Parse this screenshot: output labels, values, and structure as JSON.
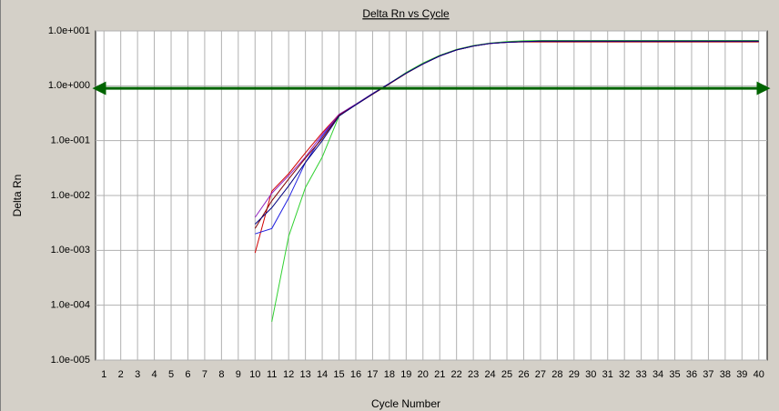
{
  "chart_data": {
    "type": "line",
    "title": "Delta Rn vs Cycle",
    "x_label": "Cycle Number",
    "y_label": "Delta Rn",
    "log_scale": true,
    "grid": true,
    "x": [
      1,
      2,
      3,
      4,
      5,
      6,
      7,
      8,
      9,
      10,
      11,
      12,
      13,
      14,
      15,
      16,
      17,
      18,
      19,
      20,
      21,
      22,
      23,
      24,
      25,
      26,
      27,
      28,
      29,
      30,
      31,
      32,
      33,
      34,
      35,
      36,
      37,
      38,
      39,
      40
    ],
    "xlim": [
      0.5,
      40.5
    ],
    "xticks": [
      1,
      2,
      3,
      4,
      5,
      6,
      7,
      8,
      9,
      10,
      11,
      12,
      13,
      14,
      15,
      16,
      17,
      18,
      19,
      20,
      21,
      22,
      23,
      24,
      25,
      26,
      27,
      28,
      29,
      30,
      31,
      32,
      33,
      34,
      35,
      36,
      37,
      38,
      39,
      40
    ],
    "ylim": [
      1e-05,
      10
    ],
    "yticks": [
      {
        "value": 1e-05,
        "label": "1.0e-005"
      },
      {
        "value": 0.0001,
        "label": "1.0e-004"
      },
      {
        "value": 0.001,
        "label": "1.0e-003"
      },
      {
        "value": 0.01,
        "label": "1.0e-002"
      },
      {
        "value": 0.1,
        "label": "1.0e-001"
      },
      {
        "value": 1,
        "label": "1.0e+000"
      },
      {
        "value": 10,
        "label": "1.0e+001"
      }
    ],
    "threshold": 0.9,
    "threshold_color": "#006400",
    "series": [
      {
        "color": "#d00000",
        "values": [
          null,
          null,
          null,
          null,
          null,
          null,
          null,
          null,
          null,
          0.0009,
          0.012,
          0.025,
          0.06,
          0.14,
          0.3,
          0.46,
          0.72,
          1.1,
          1.7,
          2.5,
          3.5,
          4.5,
          5.3,
          5.9,
          6.2,
          6.3,
          6.3,
          6.3,
          6.3,
          6.3,
          6.3,
          6.3,
          6.3,
          6.3,
          6.3,
          6.3,
          6.3,
          6.3,
          6.3,
          6.3
        ]
      },
      {
        "color": "#2020e0",
        "values": [
          null,
          null,
          null,
          null,
          null,
          null,
          null,
          null,
          null,
          0.002,
          0.0025,
          0.009,
          0.04,
          0.12,
          0.3,
          0.46,
          0.72,
          1.1,
          1.7,
          2.5,
          3.5,
          4.5,
          5.3,
          5.9,
          6.2,
          6.4,
          6.5,
          6.5,
          6.5,
          6.5,
          6.5,
          6.5,
          6.5,
          6.5,
          6.5,
          6.5,
          6.5,
          6.5,
          6.5,
          6.5
        ]
      },
      {
        "color": "#30d030",
        "values": [
          null,
          null,
          null,
          null,
          null,
          null,
          null,
          null,
          null,
          null,
          5e-05,
          0.0018,
          0.014,
          0.05,
          0.28,
          0.46,
          0.72,
          1.1,
          1.75,
          2.6,
          3.6,
          4.6,
          5.4,
          6.0,
          6.4,
          6.6,
          6.7,
          6.7,
          6.7,
          6.7,
          6.7,
          6.7,
          6.7,
          6.7,
          6.7,
          6.7,
          6.7,
          6.7,
          6.7,
          6.7
        ]
      },
      {
        "color": "#9020c0",
        "values": [
          null,
          null,
          null,
          null,
          null,
          null,
          null,
          null,
          null,
          0.004,
          0.011,
          0.023,
          0.05,
          0.13,
          0.3,
          0.46,
          0.72,
          1.1,
          1.7,
          2.5,
          3.5,
          4.5,
          5.3,
          5.9,
          6.2,
          6.4,
          6.5,
          6.5,
          6.5,
          6.5,
          6.5,
          6.5,
          6.5,
          6.5,
          6.5,
          6.5,
          6.5,
          6.5,
          6.5,
          6.5
        ]
      },
      {
        "color": "#800000",
        "values": [
          null,
          null,
          null,
          null,
          null,
          null,
          null,
          null,
          null,
          0.0025,
          0.008,
          0.02,
          0.048,
          0.11,
          0.29,
          0.45,
          0.7,
          1.08,
          1.68,
          2.5,
          3.5,
          4.5,
          5.3,
          5.9,
          6.2,
          6.4,
          6.4,
          6.4,
          6.4,
          6.4,
          6.4,
          6.4,
          6.4,
          6.4,
          6.4,
          6.4,
          6.4,
          6.4,
          6.4,
          6.4
        ]
      },
      {
        "color": "#000080",
        "values": [
          null,
          null,
          null,
          null,
          null,
          null,
          null,
          null,
          null,
          0.003,
          0.006,
          0.015,
          0.04,
          0.1,
          0.28,
          0.45,
          0.71,
          1.1,
          1.7,
          2.5,
          3.5,
          4.5,
          5.3,
          5.9,
          6.2,
          6.4,
          6.5,
          6.5,
          6.5,
          6.5,
          6.5,
          6.5,
          6.5,
          6.5,
          6.5,
          6.5,
          6.5,
          6.5,
          6.5,
          6.5
        ]
      }
    ]
  }
}
